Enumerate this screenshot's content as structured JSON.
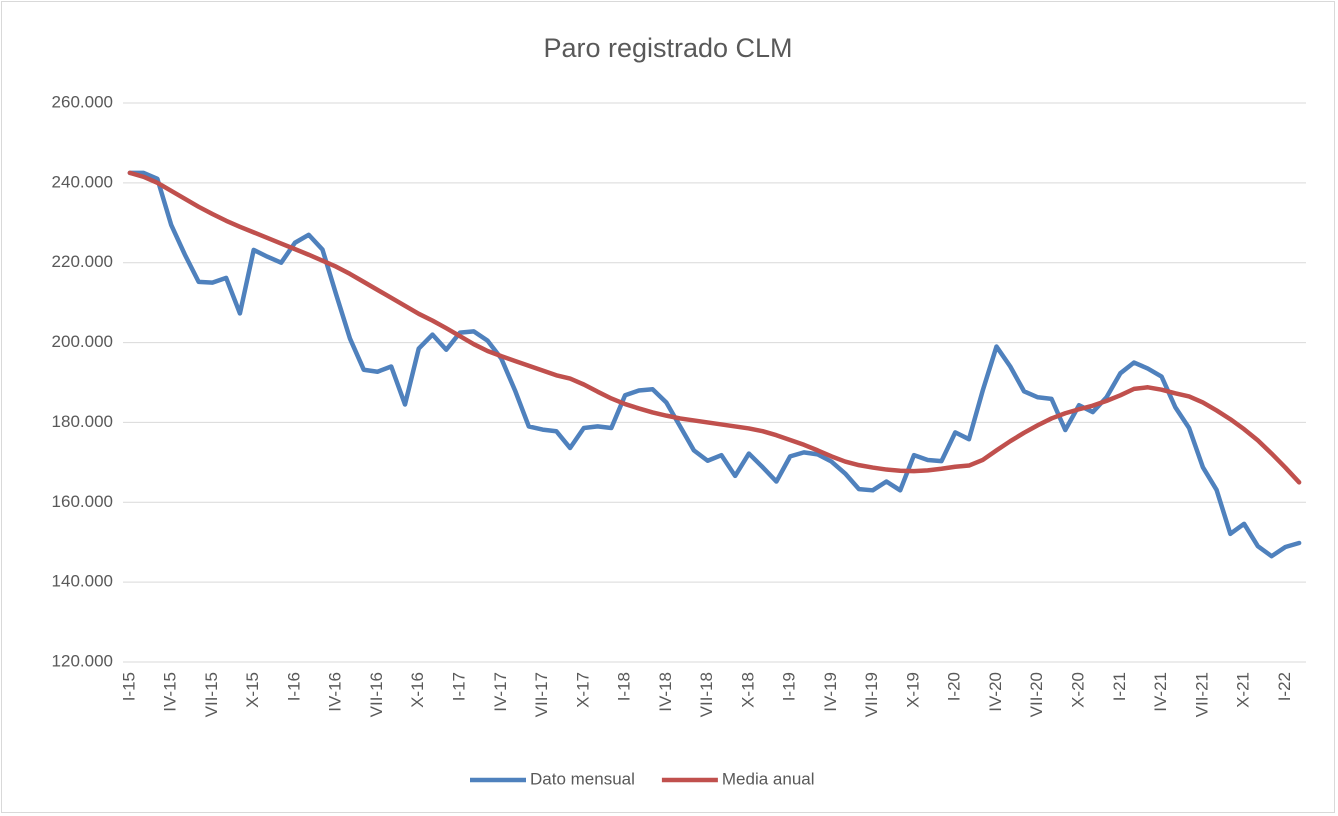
{
  "chart_data": {
    "type": "line",
    "title": "Paro registrado CLM",
    "categories": [
      "I-15",
      null,
      null,
      "IV-15",
      null,
      null,
      "VII-15",
      null,
      null,
      "X-15",
      null,
      null,
      "I-16",
      null,
      null,
      "IV-16",
      null,
      null,
      "VII-16",
      null,
      null,
      "X-16",
      null,
      null,
      "I-17",
      null,
      null,
      "IV-17",
      null,
      null,
      "VII-17",
      null,
      null,
      "X-17",
      null,
      null,
      "I-18",
      null,
      null,
      "IV-18",
      null,
      null,
      "VII-18",
      null,
      null,
      "X-18",
      null,
      null,
      "I-19",
      null,
      null,
      "IV-19",
      null,
      null,
      "VII-19",
      null,
      null,
      "X-19",
      null,
      null,
      "I-20",
      null,
      null,
      "IV-20",
      null,
      null,
      "VII-20",
      null,
      null,
      "X-20",
      null,
      null,
      "I-21",
      null,
      null,
      "IV-21",
      null,
      null,
      "VII-21",
      null,
      null,
      "X-21",
      null,
      null,
      "I-22",
      null
    ],
    "series": [
      {
        "name": "Dato mensual",
        "color": "#4f81bd",
        "values": [
          242500,
          242500,
          241000,
          229500,
          222000,
          215200,
          215000,
          216200,
          207300,
          223200,
          221500,
          220000,
          225000,
          227000,
          223300,
          212000,
          201000,
          193200,
          192700,
          194000,
          184500,
          198500,
          202000,
          198200,
          202500,
          202800,
          200500,
          196000,
          188000,
          179000,
          178200,
          177800,
          173600,
          178600,
          179000,
          178600,
          186800,
          188000,
          188300,
          185000,
          179000,
          173000,
          170400,
          171800,
          166600,
          172200,
          168800,
          165200,
          171500,
          172500,
          172000,
          170200,
          167200,
          163300,
          163000,
          165200,
          163000,
          171800,
          170600,
          170300,
          177500,
          175800,
          188000,
          199000,
          194000,
          187800,
          186300,
          185900,
          178100,
          184300,
          182600,
          186300,
          192300,
          195000,
          193500,
          191500,
          183800,
          178600,
          168800,
          163100,
          152100,
          154600,
          149000,
          146500,
          148800,
          149800
        ]
      },
      {
        "name": "Media anual",
        "color": "#c0504d",
        "values": [
          242500,
          241500,
          240000,
          238000,
          236000,
          234000,
          232200,
          230500,
          229000,
          227600,
          226200,
          224800,
          223400,
          222000,
          220500,
          219000,
          217200,
          215200,
          213200,
          211200,
          209200,
          207200,
          205500,
          203600,
          201600,
          199600,
          197900,
          196600,
          195400,
          194200,
          193000,
          191800,
          191000,
          189500,
          187700,
          186000,
          184600,
          183500,
          182500,
          181700,
          181000,
          180500,
          180000,
          179500,
          179000,
          178500,
          177800,
          176800,
          175600,
          174400,
          173000,
          171500,
          170200,
          169300,
          168700,
          168200,
          167900,
          167800,
          168000,
          168400,
          168900,
          169200,
          170600,
          173000,
          175300,
          177400,
          179300,
          181000,
          182300,
          183300,
          184200,
          185400,
          186800,
          188400,
          188800,
          188200,
          187300,
          186500,
          185000,
          183000,
          180800,
          178300,
          175500,
          172200,
          168700,
          165000
        ]
      }
    ],
    "ylim": [
      120000,
      260000
    ],
    "yticks": [
      {
        "value": 120000,
        "label": "120.000"
      },
      {
        "value": 140000,
        "label": "140.000"
      },
      {
        "value": 160000,
        "label": "160.000"
      },
      {
        "value": 180000,
        "label": "180.000"
      },
      {
        "value": 200000,
        "label": "200.000"
      },
      {
        "value": 220000,
        "label": "220.000"
      },
      {
        "value": 240000,
        "label": "240.000"
      },
      {
        "value": 260000,
        "label": "260.000"
      }
    ],
    "grid": true,
    "legend": "bottom"
  }
}
